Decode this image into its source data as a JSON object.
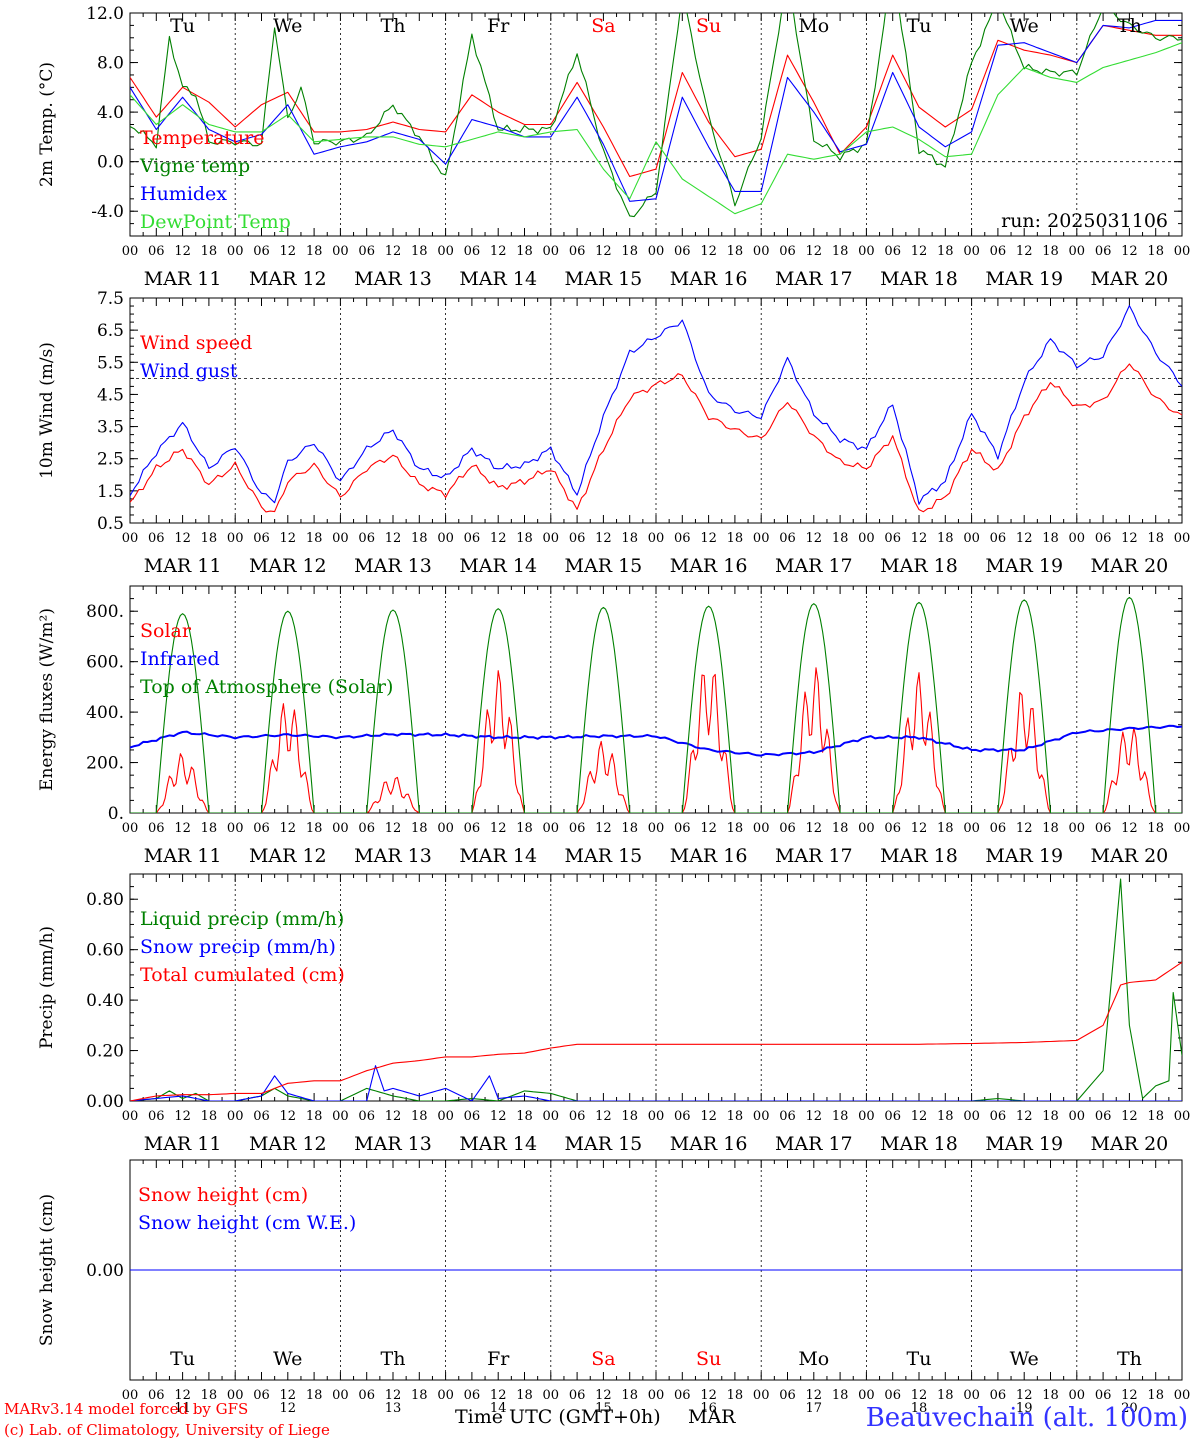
{
  "chart_data": [
    {
      "type": "line",
      "title": "",
      "ylabel": "2m Temp. (°C)",
      "ylim": [
        -6,
        12
      ],
      "yticks": [
        "-4.0",
        "0.0",
        "4.0",
        "8.0",
        "12.0"
      ],
      "ytick_values": [
        -4,
        0,
        4,
        8,
        12
      ],
      "x_unit": "hours since MAR 11 00 UTC",
      "reference_line": 0,
      "run_label": "run: 2025031106",
      "legend": [
        "Temperature",
        "Vigne temp",
        "Humidex",
        "DewPoint Temp"
      ],
      "series": [
        {
          "name": "Temperature",
          "color": "#ff0000",
          "x": [
            0,
            6,
            12,
            18,
            24,
            30,
            36,
            42,
            48,
            54,
            60,
            66,
            72,
            78,
            84,
            90,
            96,
            102,
            108,
            114,
            120,
            126,
            132,
            138,
            144,
            150,
            156,
            162,
            168,
            174,
            180,
            186,
            192,
            198,
            204,
            210,
            216,
            222,
            228,
            234,
            240
          ],
          "y": [
            6.8,
            3.6,
            6.0,
            4.8,
            2.8,
            4.6,
            5.6,
            2.4,
            2.4,
            2.6,
            3.2,
            2.6,
            2.4,
            5.4,
            4.0,
            3.0,
            3.0,
            6.4,
            2.8,
            -1.2,
            -0.6,
            7.2,
            3.2,
            0.4,
            1.0,
            8.6,
            4.8,
            0.6,
            2.8,
            8.6,
            4.4,
            2.8,
            4.2,
            9.8,
            9.0,
            8.6,
            8.0,
            11.0,
            10.6,
            10.2,
            10.2
          ]
        },
        {
          "name": "Vigne temp",
          "color": "#008000",
          "x": [
            0,
            6,
            9,
            12,
            15,
            18,
            24,
            30,
            33,
            36,
            39,
            42,
            48,
            54,
            60,
            66,
            72,
            78,
            84,
            90,
            96,
            102,
            108,
            114,
            120,
            126,
            132,
            138,
            144,
            150,
            156,
            162,
            168,
            174,
            180,
            186,
            192,
            198,
            204,
            210,
            216,
            222,
            228,
            234,
            240
          ],
          "y": [
            3.0,
            1.4,
            10.0,
            6.0,
            5.4,
            1.6,
            1.6,
            1.4,
            11.0,
            3.4,
            6.0,
            1.6,
            1.6,
            2.0,
            4.6,
            2.0,
            -1.4,
            10.2,
            2.6,
            2.6,
            2.6,
            8.8,
            0.8,
            -4.6,
            -2.4,
            13.6,
            3.6,
            -3.4,
            2.0,
            15.0,
            1.8,
            0.4,
            1.4,
            16.0,
            1.0,
            -0.4,
            8.0,
            13.0,
            7.6,
            7.2,
            7.2,
            12.6,
            11.0,
            10.0,
            10.0
          ]
        },
        {
          "name": "Humidex",
          "color": "#0000ff",
          "x": [
            0,
            6,
            12,
            18,
            24,
            30,
            36,
            42,
            48,
            54,
            60,
            66,
            72,
            78,
            84,
            90,
            96,
            102,
            108,
            114,
            120,
            126,
            132,
            138,
            144,
            150,
            156,
            162,
            168,
            174,
            180,
            186,
            192,
            198,
            204,
            210,
            216,
            222,
            228,
            234,
            240
          ],
          "y": [
            6.0,
            2.6,
            5.2,
            2.6,
            1.6,
            2.2,
            4.6,
            0.6,
            1.2,
            1.6,
            2.4,
            1.8,
            -0.2,
            3.4,
            2.8,
            2.0,
            2.0,
            5.2,
            1.4,
            -3.2,
            -3.0,
            5.2,
            1.2,
            -2.4,
            -2.4,
            6.8,
            4.0,
            0.8,
            1.4,
            7.2,
            2.8,
            1.2,
            2.4,
            9.4,
            9.6,
            8.8,
            8.0,
            11.0,
            10.8,
            11.4,
            11.4
          ]
        },
        {
          "name": "DewPoint Temp",
          "color": "#33dd33",
          "x": [
            0,
            6,
            12,
            18,
            24,
            30,
            36,
            42,
            48,
            54,
            60,
            66,
            72,
            78,
            84,
            90,
            96,
            102,
            108,
            114,
            120,
            126,
            132,
            138,
            144,
            150,
            156,
            162,
            168,
            174,
            180,
            186,
            192,
            198,
            204,
            210,
            216,
            222,
            228,
            234,
            240
          ],
          "y": [
            5.4,
            3.0,
            4.6,
            3.0,
            2.4,
            2.4,
            3.8,
            1.6,
            1.8,
            2.0,
            2.0,
            1.4,
            1.2,
            1.8,
            2.4,
            2.0,
            2.4,
            2.6,
            -0.6,
            -3.0,
            1.6,
            -1.4,
            -2.8,
            -4.2,
            -3.4,
            0.6,
            0.2,
            0.6,
            2.4,
            2.8,
            1.8,
            0.4,
            0.6,
            5.4,
            7.6,
            6.8,
            6.4,
            7.6,
            8.2,
            8.8,
            9.6
          ]
        }
      ]
    },
    {
      "type": "line",
      "title": "",
      "ylabel": "10m Wind (m/s)",
      "ylim": [
        0.5,
        7.5
      ],
      "yticks": [
        "0.5",
        "1.5",
        "2.5",
        "3.5",
        "4.5",
        "5.5",
        "6.5",
        "7.5"
      ],
      "ytick_values": [
        0.5,
        1.5,
        2.5,
        3.5,
        4.5,
        5.5,
        6.5,
        7.5
      ],
      "x_unit": "hours since MAR 11 00 UTC",
      "reference_line": 5,
      "legend": [
        "Wind speed",
        "Wind gust"
      ],
      "series": [
        {
          "name": "Wind speed",
          "color": "#ff0000",
          "x": [
            0,
            6,
            12,
            18,
            24,
            30,
            33,
            36,
            42,
            48,
            54,
            60,
            66,
            72,
            78,
            84,
            90,
            96,
            102,
            108,
            114,
            120,
            126,
            132,
            138,
            144,
            150,
            156,
            162,
            168,
            174,
            180,
            186,
            192,
            198,
            204,
            210,
            216,
            222,
            228,
            234,
            240
          ],
          "y": [
            1.1,
            2.2,
            2.8,
            1.7,
            2.3,
            1.0,
            0.8,
            1.8,
            2.3,
            1.3,
            2.2,
            2.6,
            1.7,
            1.4,
            2.3,
            1.6,
            1.8,
            2.2,
            0.9,
            2.8,
            4.4,
            4.8,
            5.1,
            3.8,
            3.4,
            3.1,
            4.3,
            3.2,
            2.4,
            2.2,
            3.2,
            0.8,
            1.3,
            2.8,
            2.1,
            3.8,
            4.9,
            4.1,
            4.3,
            5.5,
            4.4,
            3.8
          ]
        },
        {
          "name": "Wind gust",
          "color": "#0000ff",
          "x": [
            0,
            6,
            12,
            18,
            24,
            30,
            33,
            36,
            42,
            48,
            54,
            60,
            66,
            72,
            78,
            84,
            90,
            96,
            102,
            108,
            114,
            120,
            126,
            132,
            138,
            144,
            150,
            156,
            162,
            168,
            174,
            180,
            186,
            192,
            198,
            204,
            210,
            216,
            222,
            228,
            234,
            240
          ],
          "y": [
            1.4,
            2.7,
            3.6,
            2.2,
            2.9,
            1.4,
            1.2,
            2.4,
            3.0,
            1.8,
            2.8,
            3.4,
            2.2,
            1.9,
            2.8,
            2.2,
            2.3,
            2.8,
            1.4,
            3.8,
            5.8,
            6.3,
            6.8,
            4.5,
            4.0,
            3.8,
            5.6,
            3.9,
            3.1,
            2.8,
            4.2,
            1.2,
            1.8,
            3.9,
            2.6,
            4.9,
            6.2,
            5.4,
            5.7,
            7.2,
            5.8,
            4.8
          ]
        }
      ]
    },
    {
      "type": "line",
      "title": "",
      "ylabel": "Energy fluxes (W/m²)",
      "ylim": [
        0,
        900
      ],
      "yticks": [
        "0.",
        "200.",
        "400.",
        "600.",
        "800."
      ],
      "ytick_values": [
        0,
        200,
        400,
        600,
        800
      ],
      "x_unit": "hours since MAR 11 00 UTC",
      "legend": [
        "Solar",
        "Infrared",
        "Top of Atmosphere (Solar)"
      ],
      "toa_daily_peaks": [
        790,
        800,
        805,
        810,
        815,
        820,
        830,
        835,
        845,
        855
      ],
      "series": [
        {
          "name": "Solar",
          "color": "#ff0000",
          "daily_peaks": [
            240,
            460,
            150,
            570,
            290,
            620,
            590,
            560,
            510,
            360
          ]
        },
        {
          "name": "Infrared",
          "color": "#0000ff",
          "x": [
            0,
            12,
            24,
            36,
            48,
            60,
            72,
            84,
            96,
            108,
            120,
            132,
            144,
            156,
            168,
            180,
            192,
            204,
            216,
            228,
            240
          ],
          "y": [
            262,
            320,
            300,
            310,
            300,
            312,
            310,
            300,
            300,
            305,
            305,
            250,
            230,
            240,
            300,
            300,
            250,
            250,
            320,
            335,
            345
          ]
        },
        {
          "name": "Top of Atmosphere (Solar)",
          "color": "#008000"
        }
      ]
    },
    {
      "type": "line",
      "title": "",
      "ylabel": "Precip (mm/h)",
      "ylim": [
        0,
        0.9
      ],
      "yticks": [
        "0.00",
        "0.20",
        "0.40",
        "0.60",
        "0.80"
      ],
      "ytick_values": [
        0,
        0.2,
        0.4,
        0.6,
        0.8
      ],
      "x_unit": "hours since MAR 11 00 UTC",
      "legend": [
        "Liquid precip (mm/h)",
        "Snow precip (mm/h)",
        "Total cumulated (cm)"
      ],
      "series": [
        {
          "name": "Liquid precip (mm/h)",
          "color": "#008000",
          "x": [
            0,
            6,
            9,
            12,
            15,
            18,
            24,
            30,
            33,
            36,
            42,
            48,
            54,
            60,
            66,
            72,
            78,
            84,
            90,
            96,
            102,
            108,
            114,
            120,
            126,
            132,
            138,
            144,
            150,
            156,
            162,
            168,
            174,
            180,
            186,
            192,
            198,
            204,
            210,
            216,
            222,
            226,
            228,
            231,
            234,
            237,
            238,
            240
          ],
          "y": [
            0,
            0.01,
            0.04,
            0.01,
            0.03,
            0,
            0,
            0.02,
            0.05,
            0.02,
            0,
            0,
            0.05,
            0.02,
            0,
            0,
            0.01,
            0,
            0.04,
            0.03,
            0,
            0,
            0,
            0,
            0,
            0,
            0,
            0,
            0,
            0,
            0,
            0,
            0,
            0,
            0,
            0,
            0.01,
            0,
            0,
            0,
            0.12,
            0.88,
            0.3,
            0.01,
            0.06,
            0.08,
            0.43,
            0.18
          ]
        },
        {
          "name": "Snow precip (mm/h)",
          "color": "#0000ff",
          "x": [
            0,
            6,
            12,
            18,
            24,
            30,
            33,
            36,
            42,
            48,
            54,
            56,
            58,
            60,
            66,
            72,
            78,
            82,
            84,
            90,
            96,
            102,
            108,
            114,
            120,
            240
          ],
          "y": [
            0,
            0.01,
            0.02,
            0,
            0,
            0.02,
            0.1,
            0.03,
            0,
            0,
            0,
            0.14,
            0.04,
            0.05,
            0.02,
            0.05,
            0,
            0.1,
            0.01,
            0.02,
            0,
            0,
            0,
            0,
            0,
            0
          ]
        },
        {
          "name": "Total cumulated (cm)",
          "color": "#ff0000",
          "x": [
            0,
            6,
            12,
            18,
            24,
            30,
            36,
            42,
            48,
            54,
            60,
            66,
            72,
            78,
            84,
            90,
            96,
            102,
            108,
            114,
            120,
            132,
            144,
            156,
            168,
            180,
            192,
            204,
            216,
            222,
            226,
            228,
            234,
            240
          ],
          "y": [
            0,
            0.02,
            0.025,
            0.025,
            0.03,
            0.03,
            0.07,
            0.08,
            0.08,
            0.12,
            0.15,
            0.16,
            0.175,
            0.175,
            0.185,
            0.19,
            0.21,
            0.225,
            0.225,
            0.225,
            0.225,
            0.225,
            0.225,
            0.225,
            0.225,
            0.225,
            0.228,
            0.232,
            0.24,
            0.3,
            0.46,
            0.47,
            0.48,
            0.55
          ]
        }
      ]
    },
    {
      "type": "line",
      "title": "",
      "ylabel": "Snow height (cm)",
      "ylim": [
        -1,
        1
      ],
      "yticks": [
        "0.00"
      ],
      "ytick_values": [
        0
      ],
      "x_unit": "hours since MAR 11 00 UTC",
      "legend": [
        "Snow height (cm)",
        "Snow height (cm W.E.)"
      ],
      "series": [
        {
          "name": "Snow height (cm)",
          "color": "#ff0000",
          "x": [
            0,
            240
          ],
          "y": [
            0,
            0
          ]
        },
        {
          "name": "Snow height (cm W.E.)",
          "color": "#0000ff",
          "x": [
            0,
            240
          ],
          "y": [
            0,
            0
          ]
        }
      ]
    }
  ],
  "x_axis": {
    "hour_ticks": [
      "00",
      "06",
      "12",
      "18"
    ],
    "end_tick": "00",
    "day_labels": [
      "MAR 11",
      "MAR 12",
      "MAR 13",
      "MAR 14",
      "MAR 15",
      "MAR 16",
      "MAR 17",
      "MAR 18",
      "MAR 19",
      "MAR 20"
    ],
    "weekdays": [
      "Tu",
      "We",
      "Th",
      "Fr",
      "Sa",
      "Su",
      "Mo",
      "Tu",
      "We",
      "Th"
    ],
    "weekend_days": [
      "Sa",
      "Su"
    ],
    "day_numbers": [
      "11",
      "12",
      "13",
      "14",
      "15",
      "16",
      "17",
      "18",
      "19",
      "20"
    ],
    "xlabel": "Time UTC (GMT+0h)",
    "month": "MAR"
  },
  "footer": {
    "credit_line1": "MARv3.14 model forced by GFS",
    "credit_line2": "(c) Lab. of Climatology, University of Liege",
    "station": "Beauvechain (alt. 100m)"
  },
  "colors": {
    "red": "#ff0000",
    "green": "#008000",
    "blue": "#0000ff",
    "light_green": "#33dd33",
    "station_blue": "#3333ff"
  }
}
